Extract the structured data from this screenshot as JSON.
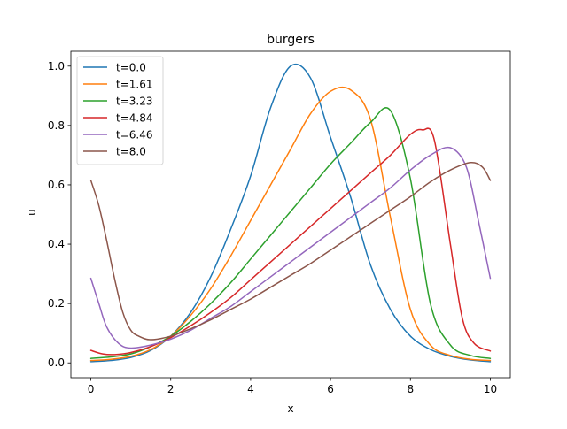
{
  "chart_data": {
    "type": "line",
    "title": "burgers",
    "xlabel": "x",
    "ylabel": "u",
    "xlim": [
      -0.5,
      10.5
    ],
    "ylim": [
      -0.05,
      1.05
    ],
    "xticks": [
      0,
      2,
      4,
      6,
      8,
      10
    ],
    "xtick_labels": [
      "0",
      "2",
      "4",
      "6",
      "8",
      "10"
    ],
    "yticks": [
      0.0,
      0.2,
      0.4,
      0.6,
      0.8,
      1.0
    ],
    "ytick_labels": [
      "0.0",
      "0.2",
      "0.4",
      "0.6",
      "0.8",
      "1.0"
    ],
    "grid": false,
    "legend_position": "top-left",
    "series": [
      {
        "name": "t=0.0",
        "color": "#1f77b4",
        "x": [
          0,
          0.5,
          1,
          1.5,
          2,
          2.5,
          3,
          3.5,
          4,
          4.5,
          5,
          5.5,
          6,
          6.5,
          7,
          7.5,
          8,
          8.5,
          9,
          9.5,
          10
        ],
        "y": [
          0.004,
          0.008,
          0.018,
          0.042,
          0.09,
          0.17,
          0.29,
          0.45,
          0.63,
          0.86,
          1.0,
          0.96,
          0.76,
          0.56,
          0.33,
          0.18,
          0.09,
          0.045,
          0.022,
          0.01,
          0.004
        ]
      },
      {
        "name": "t=1.61",
        "color": "#ff7f0e",
        "x": [
          0,
          0.5,
          1,
          1.5,
          2,
          2.5,
          3,
          3.5,
          4,
          4.5,
          5,
          5.5,
          6,
          6.5,
          7,
          7.5,
          8,
          8.5,
          9,
          9.5,
          10
        ],
        "y": [
          0.008,
          0.012,
          0.022,
          0.045,
          0.09,
          0.16,
          0.25,
          0.36,
          0.48,
          0.6,
          0.72,
          0.84,
          0.915,
          0.92,
          0.82,
          0.49,
          0.18,
          0.06,
          0.025,
          0.012,
          0.008
        ]
      },
      {
        "name": "t=3.23",
        "color": "#2ca02c",
        "x": [
          0,
          0.5,
          1,
          1.5,
          2,
          2.5,
          3,
          3.5,
          4,
          4.5,
          5,
          5.5,
          6,
          6.5,
          7,
          7.5,
          8,
          8.5,
          9,
          9.5,
          10
        ],
        "y": [
          0.015,
          0.02,
          0.03,
          0.055,
          0.09,
          0.14,
          0.2,
          0.27,
          0.35,
          0.43,
          0.51,
          0.59,
          0.67,
          0.74,
          0.81,
          0.85,
          0.62,
          0.2,
          0.06,
          0.025,
          0.015
        ]
      },
      {
        "name": "t=4.84",
        "color": "#d62728",
        "x": [
          0,
          0.3,
          0.6,
          1,
          1.5,
          2,
          2.5,
          3,
          3.5,
          4,
          4.5,
          5,
          5.5,
          6,
          6.5,
          7,
          7.5,
          8,
          8.3,
          8.6,
          9,
          9.3,
          9.6,
          10
        ],
        "y": [
          0.042,
          0.03,
          0.028,
          0.035,
          0.055,
          0.085,
          0.125,
          0.17,
          0.22,
          0.28,
          0.34,
          0.4,
          0.46,
          0.52,
          0.58,
          0.64,
          0.7,
          0.77,
          0.785,
          0.75,
          0.4,
          0.15,
          0.065,
          0.04
        ]
      },
      {
        "name": "t=6.46",
        "color": "#9467bd",
        "x": [
          0,
          0.2,
          0.4,
          0.7,
          1,
          1.5,
          2,
          2.5,
          3,
          3.5,
          4,
          4.5,
          5,
          5.5,
          6,
          6.5,
          7,
          7.5,
          8,
          8.5,
          9,
          9.4,
          9.7,
          10
        ],
        "y": [
          0.285,
          0.2,
          0.12,
          0.065,
          0.05,
          0.06,
          0.08,
          0.11,
          0.15,
          0.19,
          0.24,
          0.29,
          0.34,
          0.39,
          0.44,
          0.49,
          0.54,
          0.59,
          0.65,
          0.7,
          0.725,
          0.66,
          0.48,
          0.285
        ]
      },
      {
        "name": "t=8.0",
        "color": "#8c564b",
        "x": [
          0,
          0.2,
          0.4,
          0.6,
          0.8,
          1,
          1.2,
          1.5,
          2,
          2.5,
          3,
          3.5,
          4,
          4.5,
          5,
          5.5,
          6,
          6.5,
          7,
          7.5,
          8,
          8.5,
          9,
          9.5,
          9.8,
          10
        ],
        "y": [
          0.615,
          0.53,
          0.41,
          0.28,
          0.17,
          0.11,
          0.09,
          0.078,
          0.09,
          0.115,
          0.145,
          0.18,
          0.215,
          0.255,
          0.295,
          0.335,
          0.38,
          0.425,
          0.47,
          0.515,
          0.56,
          0.61,
          0.65,
          0.675,
          0.66,
          0.615
        ]
      }
    ]
  }
}
